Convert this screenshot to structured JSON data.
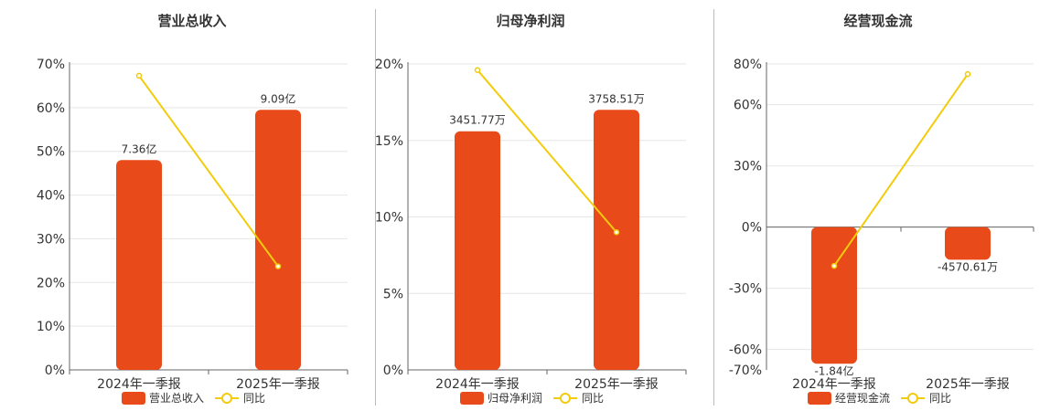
{
  "colors": {
    "bar": "#E84A1A",
    "line": "#F2CC0C",
    "grid": "#E6E6E6",
    "axis": "#666666",
    "divider": "#BBBBBB"
  },
  "chart_data": [
    {
      "type": "bar",
      "title": "营业总收入",
      "categories": [
        "2024年一季报",
        "2025年一季报"
      ],
      "bar_labels": [
        "7.36亿",
        "9.09亿"
      ],
      "bar_values_pct": [
        48,
        59.5
      ],
      "line_values_pct": [
        67.3,
        23.7
      ],
      "yticks": [
        "70%",
        "60%",
        "50%",
        "40%",
        "30%",
        "20%",
        "10%",
        "0%"
      ],
      "ylim": [
        0,
        70
      ],
      "legend": {
        "bar": "营业总收入",
        "line": "同比"
      },
      "series": [
        {
          "name": "营业总收入",
          "kind": "bar",
          "values_yuan": [
            736000000,
            909000000
          ]
        },
        {
          "name": "同比",
          "kind": "line"
        }
      ]
    },
    {
      "type": "bar",
      "title": "归母净利润",
      "categories": [
        "2024年一季报",
        "2025年一季报"
      ],
      "bar_labels": [
        "3451.77万",
        "3758.51万"
      ],
      "bar_values_pct": [
        15.6,
        17
      ],
      "line_values_pct": [
        19.6,
        9
      ],
      "yticks": [
        "20%",
        "15%",
        "10%",
        "5%",
        "0%"
      ],
      "ylim": [
        0,
        20
      ],
      "legend": {
        "bar": "归母净利润",
        "line": "同比"
      },
      "series": [
        {
          "name": "归母净利润",
          "kind": "bar",
          "values_yuan": [
            34517700,
            37585100
          ]
        },
        {
          "name": "同比",
          "kind": "line"
        }
      ]
    },
    {
      "type": "bar",
      "title": "经营现金流",
      "categories": [
        "2024年一季报",
        "2025年一季报"
      ],
      "bar_labels": [
        "-1.84亿",
        "-4570.61万"
      ],
      "bar_values_pct": [
        -67,
        -16
      ],
      "line_values_pct": [
        -19,
        75
      ],
      "yticks": [
        "80%",
        "60%",
        "30%",
        "0%",
        "-30%",
        "-60%",
        "-70%"
      ],
      "ylim": [
        -70,
        80
      ],
      "legend": {
        "bar": "经营现金流",
        "line": "同比"
      },
      "series": [
        {
          "name": "经营现金流",
          "kind": "bar",
          "values_yuan": [
            -184000000,
            -45706100
          ]
        },
        {
          "name": "同比",
          "kind": "line"
        }
      ]
    }
  ]
}
